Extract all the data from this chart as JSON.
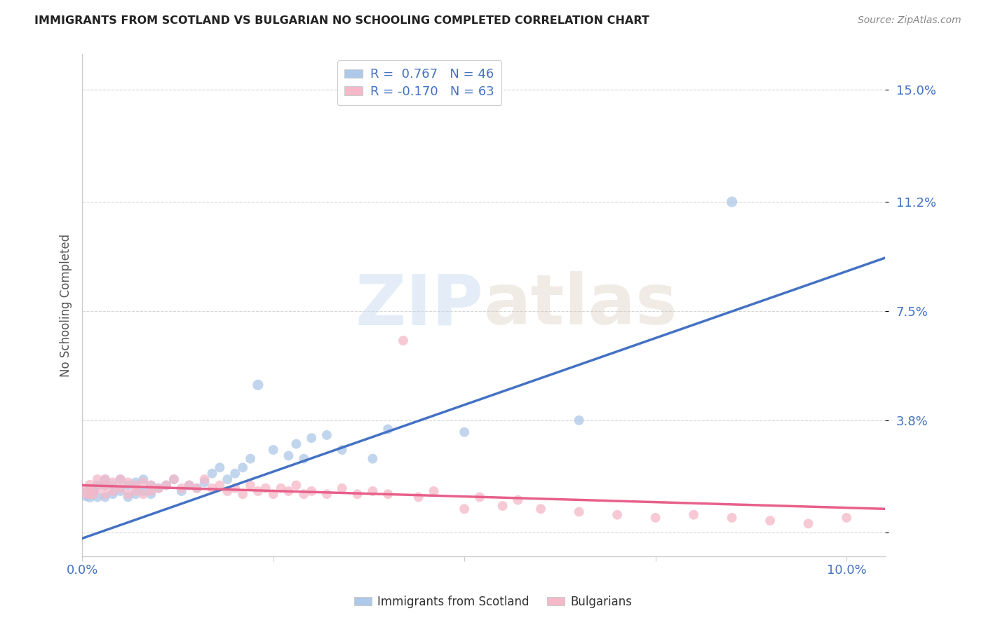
{
  "title": "IMMIGRANTS FROM SCOTLAND VS BULGARIAN NO SCHOOLING COMPLETED CORRELATION CHART",
  "source": "Source: ZipAtlas.com",
  "ylabel": "No Schooling Completed",
  "xlim": [
    0.0,
    0.105
  ],
  "ylim": [
    -0.008,
    0.162
  ],
  "xticks": [
    0.0,
    0.025,
    0.05,
    0.075,
    0.1
  ],
  "xticklabels": [
    "0.0%",
    "",
    "",
    "",
    "10.0%"
  ],
  "ytick_values": [
    0.0,
    0.038,
    0.075,
    0.112,
    0.15
  ],
  "ytick_labels": [
    "",
    "3.8%",
    "7.5%",
    "11.2%",
    "15.0%"
  ],
  "scotland_R": 0.767,
  "scotland_N": 46,
  "bulgarian_R": -0.17,
  "bulgarian_N": 63,
  "scotland_color": "#adc8e8",
  "scotland_edge_color": "#adc8e8",
  "scotland_line_color": "#4472c4",
  "bulgarian_color": "#f4b8c8",
  "bulgarian_edge_color": "#f4b8c8",
  "bulgarian_line_color": "#e8608a",
  "background_color": "#ffffff",
  "grid_color": "#cccccc",
  "watermark_zip": "ZIP",
  "watermark_atlas": "atlas",
  "title_color": "#222222",
  "source_color": "#888888",
  "tick_color": "#4472c4",
  "ylabel_color": "#555555",
  "scotland_x": [
    0.0005,
    0.001,
    0.0015,
    0.002,
    0.002,
    0.003,
    0.003,
    0.003,
    0.004,
    0.004,
    0.005,
    0.005,
    0.006,
    0.006,
    0.007,
    0.007,
    0.008,
    0.008,
    0.009,
    0.009,
    0.01,
    0.011,
    0.012,
    0.013,
    0.014,
    0.015,
    0.016,
    0.017,
    0.018,
    0.019,
    0.02,
    0.021,
    0.022,
    0.023,
    0.025,
    0.027,
    0.028,
    0.029,
    0.03,
    0.032,
    0.034,
    0.038,
    0.04,
    0.05,
    0.065,
    0.085
  ],
  "scotland_y": [
    0.013,
    0.012,
    0.014,
    0.012,
    0.016,
    0.012,
    0.016,
    0.018,
    0.013,
    0.016,
    0.014,
    0.018,
    0.012,
    0.016,
    0.013,
    0.017,
    0.014,
    0.018,
    0.013,
    0.016,
    0.015,
    0.016,
    0.018,
    0.014,
    0.016,
    0.015,
    0.017,
    0.02,
    0.022,
    0.018,
    0.02,
    0.022,
    0.025,
    0.05,
    0.028,
    0.026,
    0.03,
    0.025,
    0.032,
    0.033,
    0.028,
    0.025,
    0.035,
    0.034,
    0.038,
    0.112
  ],
  "scotland_sizes": [
    200,
    120,
    100,
    100,
    100,
    100,
    100,
    100,
    100,
    100,
    100,
    100,
    100,
    100,
    100,
    100,
    100,
    100,
    100,
    100,
    100,
    100,
    100,
    100,
    100,
    100,
    100,
    100,
    100,
    100,
    100,
    100,
    100,
    120,
    100,
    100,
    100,
    100,
    100,
    100,
    100,
    100,
    100,
    100,
    100,
    120
  ],
  "bulgarian_x": [
    0.0005,
    0.001,
    0.001,
    0.0015,
    0.002,
    0.002,
    0.003,
    0.003,
    0.003,
    0.004,
    0.004,
    0.005,
    0.005,
    0.006,
    0.006,
    0.007,
    0.007,
    0.008,
    0.008,
    0.009,
    0.009,
    0.01,
    0.011,
    0.012,
    0.013,
    0.014,
    0.015,
    0.016,
    0.017,
    0.018,
    0.019,
    0.02,
    0.021,
    0.022,
    0.023,
    0.024,
    0.025,
    0.026,
    0.027,
    0.028,
    0.029,
    0.03,
    0.032,
    0.034,
    0.036,
    0.038,
    0.04,
    0.042,
    0.044,
    0.046,
    0.05,
    0.052,
    0.055,
    0.057,
    0.06,
    0.065,
    0.07,
    0.075,
    0.08,
    0.085,
    0.09,
    0.095,
    0.1
  ],
  "bulgarian_y": [
    0.014,
    0.013,
    0.016,
    0.013,
    0.015,
    0.018,
    0.013,
    0.016,
    0.018,
    0.014,
    0.017,
    0.015,
    0.018,
    0.013,
    0.017,
    0.014,
    0.016,
    0.013,
    0.017,
    0.014,
    0.016,
    0.015,
    0.016,
    0.018,
    0.015,
    0.016,
    0.015,
    0.018,
    0.015,
    0.016,
    0.014,
    0.015,
    0.013,
    0.016,
    0.014,
    0.015,
    0.013,
    0.015,
    0.014,
    0.016,
    0.013,
    0.014,
    0.013,
    0.015,
    0.013,
    0.014,
    0.013,
    0.065,
    0.012,
    0.014,
    0.008,
    0.012,
    0.009,
    0.011,
    0.008,
    0.007,
    0.006,
    0.005,
    0.006,
    0.005,
    0.004,
    0.003,
    0.005
  ],
  "bulgarian_sizes": [
    220,
    120,
    120,
    100,
    100,
    100,
    100,
    100,
    100,
    100,
    100,
    100,
    100,
    100,
    100,
    100,
    100,
    100,
    100,
    100,
    100,
    100,
    100,
    100,
    100,
    100,
    100,
    100,
    100,
    100,
    100,
    100,
    100,
    100,
    100,
    100,
    100,
    100,
    100,
    100,
    100,
    100,
    100,
    100,
    100,
    100,
    100,
    100,
    100,
    100,
    100,
    100,
    100,
    100,
    100,
    100,
    100,
    100,
    100,
    100,
    100,
    100,
    100
  ],
  "scotland_line_x": [
    0.0,
    0.105
  ],
  "scotland_line_y": [
    -0.002,
    0.093
  ],
  "bulgarian_line_x": [
    0.0,
    0.105
  ],
  "bulgarian_line_y": [
    0.016,
    0.008
  ]
}
